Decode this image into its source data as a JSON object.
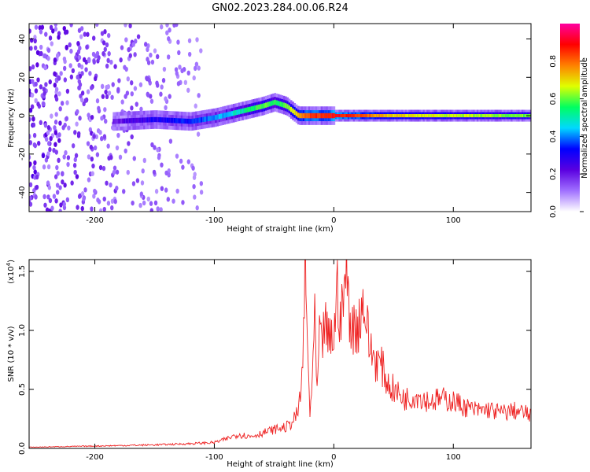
{
  "title": "GN02.2023.284.00.06.R24",
  "chart_data": [
    {
      "type": "heatmap",
      "xlabel": "Height of straight line (km)",
      "ylabel": "Frequency (Hz)",
      "xlim": [
        -255,
        165
      ],
      "ylim": [
        -50,
        48
      ],
      "xticks": [
        -200,
        -100,
        0,
        100
      ],
      "yticks": [
        -40,
        -20,
        0,
        20,
        40
      ],
      "colorbar": {
        "label": "Normalized spectral amplitude",
        "range": [
          0.0,
          1.0
        ],
        "ticks": [
          "0.0",
          "0.2",
          "0.4",
          "0.6",
          "0.8"
        ],
        "colors": [
          "#ffffff",
          "#a070ff",
          "#5a00e0",
          "#0000ff",
          "#00d8ff",
          "#00ff60",
          "#e0ff00",
          "#ff8000",
          "#ff0000",
          "#ff00a0"
        ]
      },
      "ridge": {
        "x": [
          -185,
          -150,
          -120,
          -100,
          -80,
          -60,
          -50,
          -40,
          -30,
          -20,
          -10,
          0,
          50,
          100,
          165
        ],
        "freq": [
          -3,
          -2,
          -3,
          -1,
          2,
          5,
          7,
          5,
          0,
          0,
          0,
          0,
          0,
          0,
          0
        ],
        "amplitude": [
          0.2,
          0.3,
          0.35,
          0.4,
          0.5,
          0.6,
          0.55,
          0.6,
          0.75,
          0.85,
          0.85,
          0.9,
          0.7,
          0.65,
          0.6
        ]
      },
      "noise_region_x": [
        -255,
        -110
      ],
      "grid": false
    },
    {
      "type": "line",
      "xlabel": "Height of straight line (km)",
      "ylabel": "SNR (10 * v/v)",
      "exponent_label": "(x10",
      "exponent_power": "4",
      "exponent_close": ")",
      "xlim": [
        -255,
        165
      ],
      "ylim": [
        0.0,
        1.6
      ],
      "xticks": [
        -200,
        -100,
        0,
        100
      ],
      "yticks": [
        "0.0",
        "0.5",
        "1.0",
        "1.5"
      ],
      "line_color": "#ee2222",
      "series": [
        {
          "x": [
            -255,
            -200,
            -150,
            -120,
            -100,
            -90,
            -80,
            -70,
            -60,
            -50,
            -40,
            -35,
            -30,
            -28,
            -26,
            -24,
            -22,
            -20,
            -18,
            -16,
            -14,
            -12,
            -10,
            -8,
            -5,
            0,
            3,
            6,
            10,
            15,
            20,
            25,
            30,
            35,
            40,
            45,
            50,
            55,
            60,
            70,
            80,
            90,
            100,
            110,
            120,
            130,
            140,
            150,
            160,
            165
          ],
          "values": [
            0.01,
            0.02,
            0.03,
            0.04,
            0.05,
            0.08,
            0.12,
            0.1,
            0.13,
            0.16,
            0.18,
            0.22,
            0.3,
            0.45,
            0.7,
            1.62,
            0.8,
            0.3,
            0.6,
            1.05,
            0.45,
            0.95,
            0.8,
            1.1,
            0.9,
            0.95,
            1.35,
            1.05,
            1.5,
            1.0,
            1.05,
            1.25,
            0.85,
            0.75,
            0.7,
            0.55,
            0.5,
            0.45,
            0.42,
            0.45,
            0.4,
            0.42,
            0.4,
            0.35,
            0.32,
            0.33,
            0.3,
            0.32,
            0.3,
            0.28
          ]
        }
      ],
      "grid": false
    }
  ]
}
